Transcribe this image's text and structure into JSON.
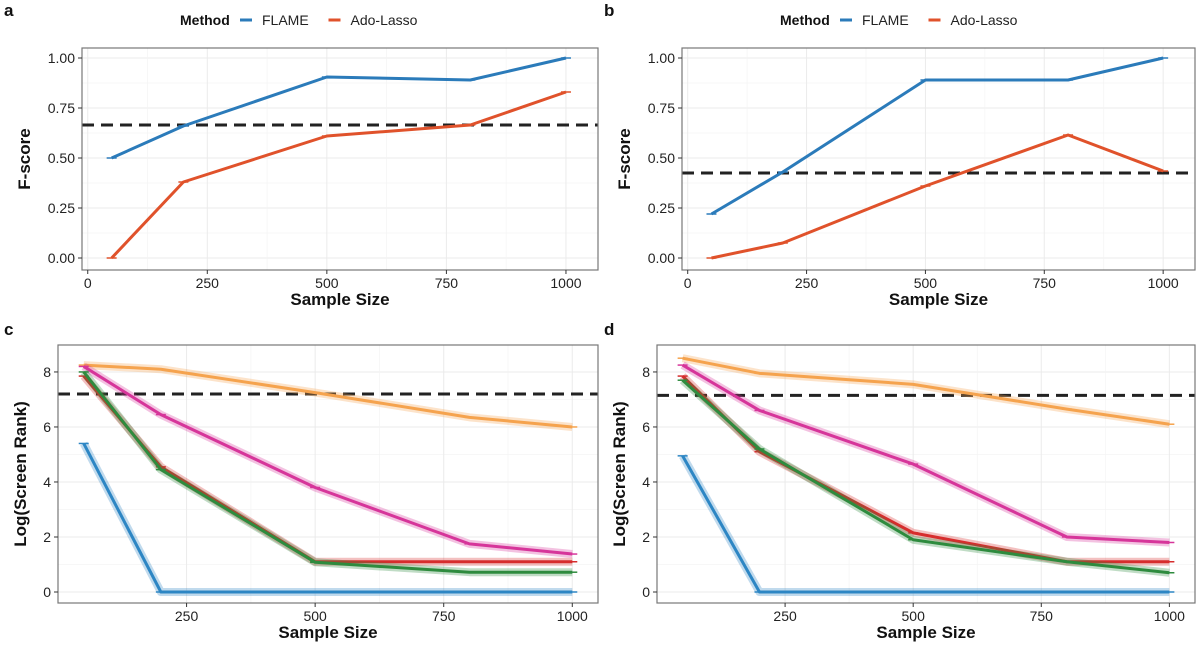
{
  "chart_data": [
    {
      "panel_label": "a",
      "type": "line",
      "legend": {
        "title": "Method",
        "placement": "top",
        "entries": [
          "FLAME",
          "Ado-Lasso"
        ]
      },
      "xlabel": "Sample Size",
      "ylabel": "F-score",
      "x": [
        50,
        200,
        500,
        800,
        1000
      ],
      "xticks": [
        "0",
        "250",
        "500",
        "750",
        "1000"
      ],
      "yticks": [
        "0.00",
        "0.25",
        "0.50",
        "0.75",
        "1.00"
      ],
      "xlim": [
        -12,
        1067
      ],
      "ylim": [
        -0.06,
        1.05
      ],
      "grid": true,
      "reference_line": 0.665,
      "series": [
        {
          "name": "FLAME",
          "color": "#2b7bba",
          "values": [
            0.5,
            0.66,
            0.905,
            0.89,
            1.0
          ]
        },
        {
          "name": "Ado-Lasso",
          "color": "#e0522b",
          "values": [
            0.0,
            0.38,
            0.61,
            0.665,
            0.83
          ]
        }
      ]
    },
    {
      "panel_label": "b",
      "type": "line",
      "legend": {
        "title": "Method",
        "placement": "top",
        "entries": [
          "FLAME",
          "Ado-Lasso"
        ]
      },
      "xlabel": "Sample Size",
      "ylabel": "F-score",
      "x": [
        50,
        200,
        500,
        800,
        1000
      ],
      "xticks": [
        "0",
        "250",
        "500",
        "750",
        "1000"
      ],
      "yticks": [
        "0.00",
        "0.25",
        "0.50",
        "0.75",
        "1.00"
      ],
      "xlim": [
        -12,
        1067
      ],
      "ylim": [
        -0.06,
        1.05
      ],
      "grid": true,
      "reference_line": 0.425,
      "series": [
        {
          "name": "FLAME",
          "color": "#2b7bba",
          "values": [
            0.22,
            0.43,
            0.89,
            0.89,
            1.0
          ]
        },
        {
          "name": "Ado-Lasso",
          "color": "#e0522b",
          "values": [
            0.0,
            0.075,
            0.36,
            0.615,
            0.435
          ]
        }
      ]
    },
    {
      "panel_label": "c",
      "type": "line",
      "xlabel": "Sample Size",
      "ylabel": "Log(Screen Rank)",
      "x": [
        50,
        200,
        500,
        800,
        1000
      ],
      "xticks": [
        "250",
        "500",
        "750",
        "1000"
      ],
      "yticks": [
        "0",
        "2",
        "4",
        "6",
        "8"
      ],
      "xlim": [
        0,
        1050
      ],
      "ylim": [
        -0.4,
        8.98
      ],
      "grid": true,
      "reference_line": 7.2,
      "series": [
        {
          "color": "#f5a34e",
          "values": [
            8.25,
            8.1,
            7.25,
            6.35,
            6.0
          ]
        },
        {
          "color": "#d6359a",
          "values": [
            8.2,
            6.45,
            3.8,
            1.75,
            1.38
          ]
        },
        {
          "color": "#d62d2d",
          "values": [
            7.85,
            4.55,
            1.1,
            1.1,
            1.1
          ]
        },
        {
          "color": "#2e8b3e",
          "values": [
            8.0,
            4.45,
            1.08,
            0.72,
            0.72
          ]
        },
        {
          "color": "#2d86c4",
          "values": [
            5.4,
            0,
            0,
            0,
            0
          ]
        }
      ]
    },
    {
      "panel_label": "d",
      "type": "line",
      "xlabel": "Sample Size",
      "ylabel": "Log(Screen Rank)",
      "x": [
        50,
        200,
        500,
        800,
        1000
      ],
      "xticks": [
        "250",
        "500",
        "750",
        "1000"
      ],
      "yticks": [
        "0",
        "2",
        "4",
        "6",
        "8"
      ],
      "xlim": [
        0,
        1050
      ],
      "ylim": [
        -0.4,
        8.98
      ],
      "grid": true,
      "reference_line": 7.15,
      "series": [
        {
          "color": "#f5a34e",
          "values": [
            8.5,
            7.95,
            7.55,
            6.65,
            6.1
          ]
        },
        {
          "color": "#d6359a",
          "values": [
            8.25,
            6.6,
            4.65,
            2.0,
            1.8
          ]
        },
        {
          "color": "#d62d2d",
          "values": [
            7.85,
            5.1,
            2.15,
            1.1,
            1.1
          ]
        },
        {
          "color": "#2e8b3e",
          "values": [
            7.7,
            5.2,
            1.9,
            1.1,
            0.7
          ]
        },
        {
          "color": "#2d86c4",
          "values": [
            4.95,
            0,
            0,
            0,
            0
          ]
        }
      ]
    }
  ]
}
